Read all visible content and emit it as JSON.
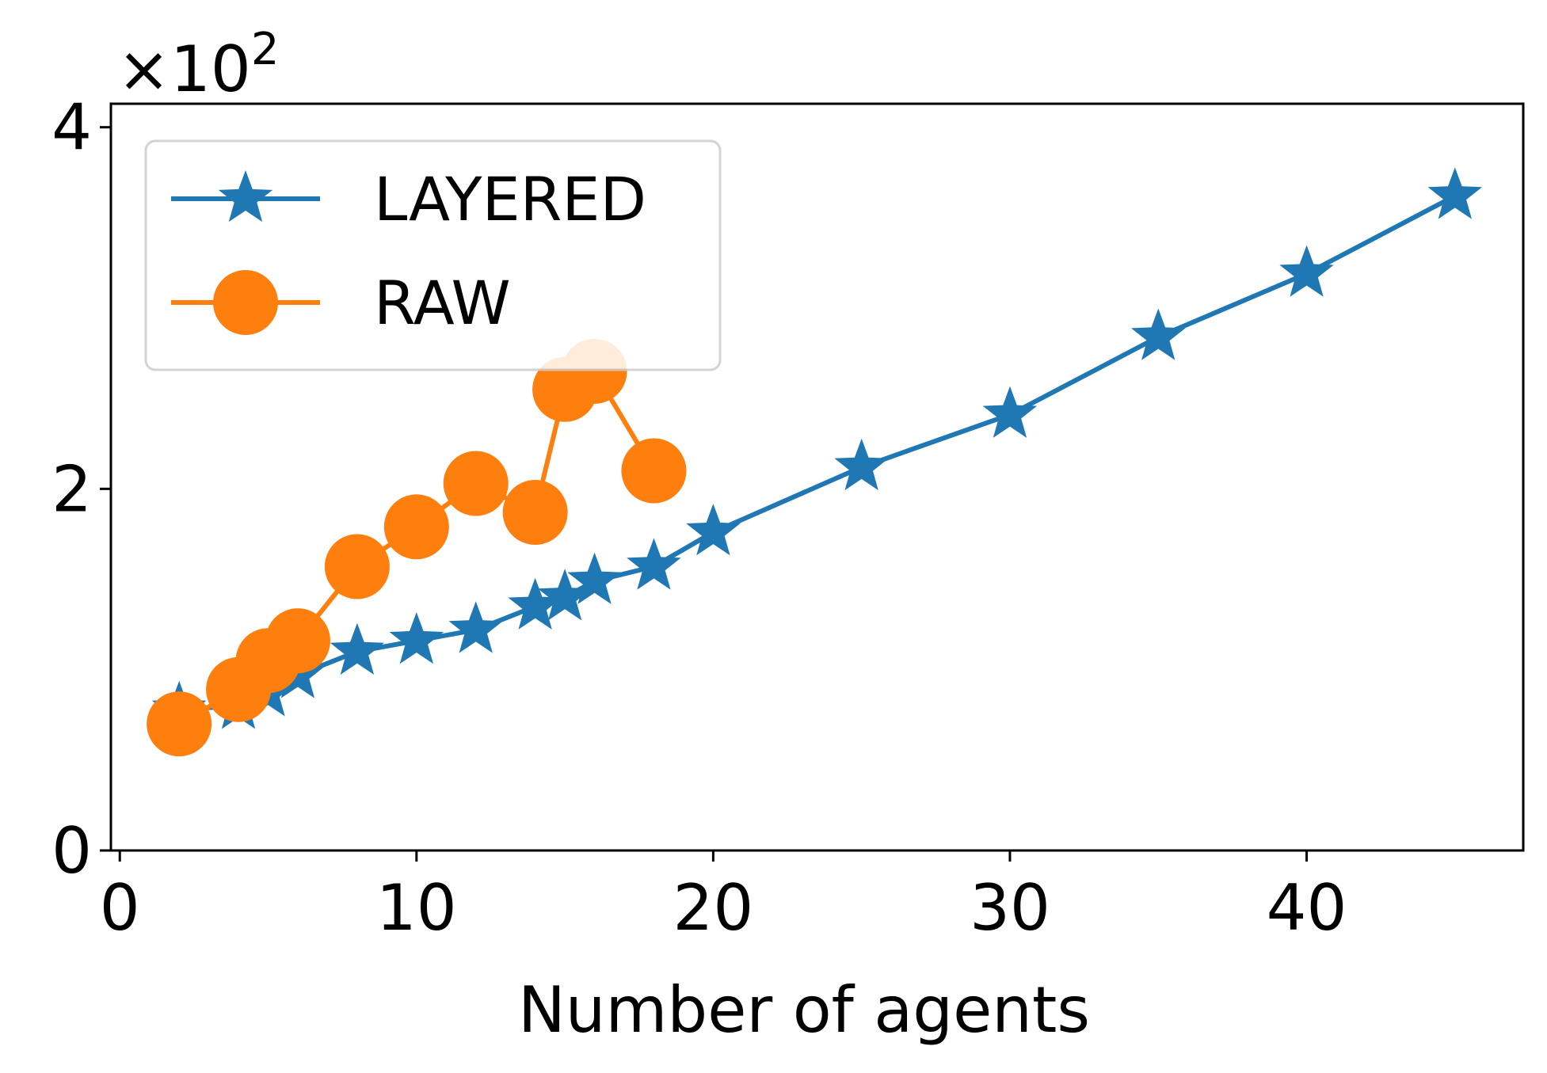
{
  "chart_data": {
    "type": "line",
    "title": "",
    "xlabel": "Number of agents",
    "ylabel": "",
    "y_multiplier": {
      "base": "×10",
      "exponent": "2"
    },
    "xlim": [
      -0.3,
      47.3
    ],
    "ylim": [
      0,
      4.13
    ],
    "x_ticks": [
      0,
      10,
      20,
      30,
      40
    ],
    "y_ticks": [
      0,
      2,
      4
    ],
    "grid": false,
    "legend_position": "top-left",
    "series": [
      {
        "name": "LAYERED",
        "color": "#1f77b4",
        "marker": "star",
        "points": [
          {
            "x": 2,
            "y": 0.78
          },
          {
            "x": 4,
            "y": 0.8
          },
          {
            "x": 5,
            "y": 0.87
          },
          {
            "x": 6,
            "y": 0.97
          },
          {
            "x": 8,
            "y": 1.1
          },
          {
            "x": 10,
            "y": 1.16
          },
          {
            "x": 12,
            "y": 1.22
          },
          {
            "x": 14,
            "y": 1.35
          },
          {
            "x": 15,
            "y": 1.4
          },
          {
            "x": 16,
            "y": 1.49
          },
          {
            "x": 18,
            "y": 1.57
          },
          {
            "x": 20,
            "y": 1.76
          },
          {
            "x": 25,
            "y": 2.12
          },
          {
            "x": 30,
            "y": 2.41
          },
          {
            "x": 35,
            "y": 2.84
          },
          {
            "x": 40,
            "y": 3.19
          },
          {
            "x": 45,
            "y": 3.62
          }
        ]
      },
      {
        "name": "RAW",
        "color": "#ff7f0e",
        "marker": "circle",
        "points": [
          {
            "x": 2,
            "y": 0.7
          },
          {
            "x": 4,
            "y": 0.89
          },
          {
            "x": 5,
            "y": 1.05
          },
          {
            "x": 6,
            "y": 1.16
          },
          {
            "x": 8,
            "y": 1.57
          },
          {
            "x": 10,
            "y": 1.79
          },
          {
            "x": 12,
            "y": 2.03
          },
          {
            "x": 14,
            "y": 1.87
          },
          {
            "x": 15,
            "y": 2.55
          },
          {
            "x": 16,
            "y": 2.65
          },
          {
            "x": 18,
            "y": 2.1
          }
        ]
      }
    ]
  }
}
